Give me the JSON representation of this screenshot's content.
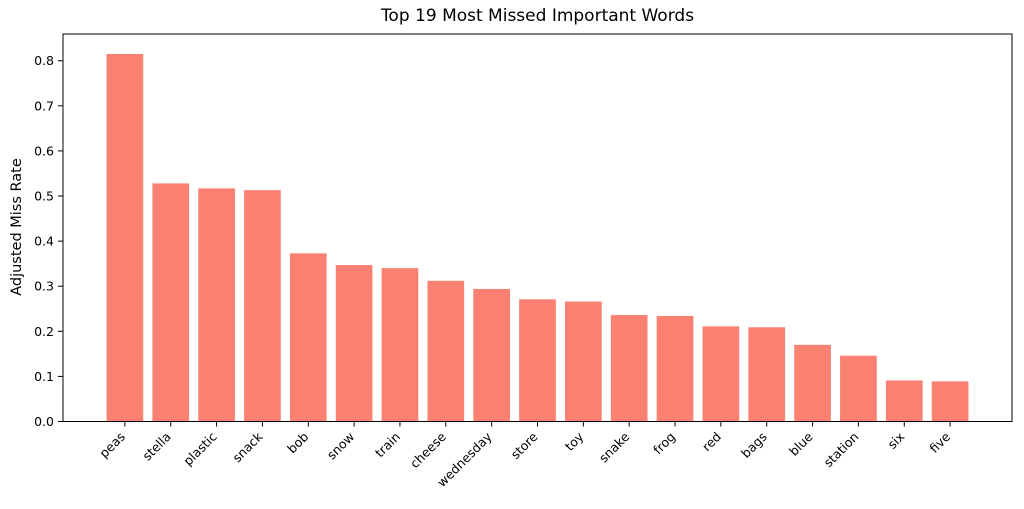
{
  "chart_data": {
    "type": "bar",
    "title": "Top 19 Most Missed Important Words",
    "xlabel": "",
    "ylabel": "Adjusted Miss Rate",
    "categories": [
      "peas",
      "stella",
      "plastic",
      "snack",
      "bob",
      "snow",
      "train",
      "cheese",
      "wednesday",
      "store",
      "toy",
      "snake",
      "frog",
      "red",
      "bags",
      "blue",
      "station",
      "six",
      "five"
    ],
    "values": [
      0.815,
      0.528,
      0.517,
      0.513,
      0.373,
      0.347,
      0.34,
      0.312,
      0.294,
      0.271,
      0.266,
      0.236,
      0.234,
      0.211,
      0.209,
      0.17,
      0.146,
      0.091,
      0.089
    ],
    "ylim": [
      0,
      0.8593
    ],
    "yticks": [
      0.0,
      0.1,
      0.2,
      0.3,
      0.4,
      0.5,
      0.6,
      0.7,
      0.8
    ],
    "ytick_labels": [
      "0.0",
      "0.1",
      "0.2",
      "0.3",
      "0.4",
      "0.5",
      "0.6",
      "0.7",
      "0.8"
    ],
    "x_tick_rotation": 45,
    "grid": false,
    "legend": "none",
    "bar_color": "#FA8072",
    "spine_color": "#000000",
    "background_color": "#ffffff"
  }
}
